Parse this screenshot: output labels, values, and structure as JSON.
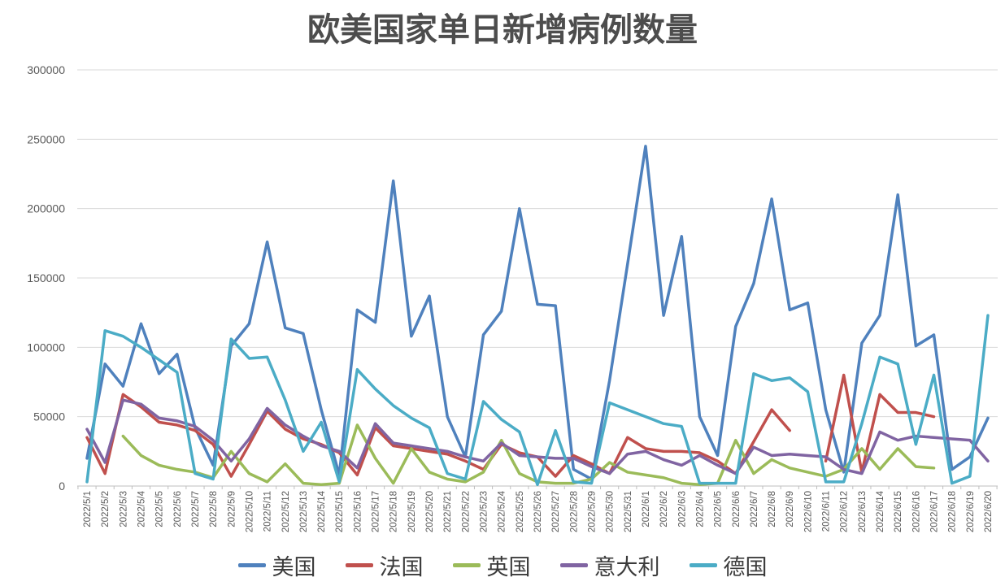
{
  "title": "欧美国家单日新增病例数量",
  "chart_data": {
    "type": "line",
    "title": "欧美国家单日新增病例数量",
    "xlabel": "",
    "ylabel": "",
    "ylim": [
      0,
      300000
    ],
    "yticks": [
      0,
      50000,
      100000,
      150000,
      200000,
      250000,
      300000
    ],
    "grid": true,
    "grid_color": "#d9d9d9",
    "axis_label_color": "#595959",
    "legend_position": "bottom",
    "categories": [
      "2022/5/1",
      "2022/5/2",
      "2022/5/3",
      "2022/5/4",
      "2022/5/5",
      "2022/5/6",
      "2022/5/7",
      "2022/5/8",
      "2022/5/9",
      "2022/5/10",
      "2022/5/11",
      "2022/5/12",
      "2022/5/13",
      "2022/5/14",
      "2022/5/15",
      "2022/5/16",
      "2022/5/17",
      "2022/5/18",
      "2022/5/19",
      "2022/5/20",
      "2022/5/21",
      "2022/5/22",
      "2022/5/23",
      "2022/5/24",
      "2022/5/25",
      "2022/5/26",
      "2022/5/27",
      "2022/5/28",
      "2022/5/29",
      "2022/5/30",
      "2022/5/31",
      "2022/6/1",
      "2022/6/2",
      "2022/6/3",
      "2022/6/4",
      "2022/6/5",
      "2022/6/6",
      "2022/6/7",
      "2022/6/8",
      "2022/6/9",
      "2022/6/10",
      "2022/6/11",
      "2022/6/12",
      "2022/6/13",
      "2022/6/14",
      "2022/6/15",
      "2022/6/16",
      "2022/6/17",
      "2022/6/18",
      "2022/6/19",
      "2022/6/20"
    ],
    "series": [
      {
        "key": "usa",
        "name": "美国",
        "color": "#4F81BD",
        "values": [
          20000,
          88000,
          72000,
          117000,
          81000,
          95000,
          42000,
          15000,
          101000,
          117000,
          176000,
          114000,
          110000,
          55000,
          8000,
          127000,
          118000,
          220000,
          108000,
          137000,
          50000,
          21000,
          109000,
          126000,
          200000,
          131000,
          130000,
          12000,
          5000,
          76000,
          160000,
          245000,
          123000,
          180000,
          50000,
          22000,
          115000,
          146000,
          207000,
          127000,
          132000,
          55000,
          10000,
          103000,
          123000,
          210000,
          101000,
          109000,
          12000,
          21000,
          49000
        ]
      },
      {
        "key": "france",
        "name": "法国",
        "color": "#C0504D",
        "values": [
          35000,
          9000,
          66000,
          57000,
          46000,
          44000,
          40000,
          30000,
          7000,
          30000,
          54000,
          41000,
          34000,
          30000,
          24000,
          8000,
          42000,
          29000,
          27000,
          25000,
          23000,
          18000,
          12000,
          30000,
          24000,
          21000,
          7000,
          22000,
          16000,
          9000,
          35000,
          27000,
          25000,
          25000,
          24000,
          18000,
          9000,
          32000,
          55000,
          40000,
          null,
          18000,
          80000,
          10000,
          66000,
          53000,
          53000,
          50000,
          null,
          null,
          null
        ]
      },
      {
        "key": "uk",
        "name": "英国",
        "color": "#9BBB59",
        "values": [
          null,
          null,
          36000,
          22000,
          15000,
          12000,
          10000,
          6000,
          25000,
          9000,
          3000,
          16000,
          2000,
          1000,
          2000,
          44000,
          20000,
          2000,
          27000,
          10000,
          5000,
          3000,
          10000,
          33000,
          9000,
          3000,
          2000,
          2000,
          5000,
          17000,
          10000,
          8000,
          6000,
          2000,
          1000,
          2000,
          33000,
          9000,
          19000,
          13000,
          10000,
          7000,
          12000,
          27000,
          12000,
          27000,
          14000,
          13000,
          null,
          null,
          null
        ]
      },
      {
        "key": "italy",
        "name": "意大利",
        "color": "#8064A2",
        "values": [
          41000,
          17000,
          62000,
          59000,
          49000,
          47000,
          43000,
          33000,
          18000,
          34000,
          56000,
          44000,
          36000,
          29000,
          25000,
          13000,
          45000,
          31000,
          29000,
          27000,
          25000,
          21000,
          18000,
          31000,
          22000,
          21000,
          20000,
          20000,
          14000,
          9000,
          23000,
          25000,
          19000,
          15000,
          22000,
          15000,
          9000,
          28000,
          22000,
          23000,
          22000,
          21000,
          12000,
          9000,
          39000,
          33000,
          36000,
          35000,
          34000,
          33000,
          18000
        ]
      },
      {
        "key": "germany",
        "name": "德国",
        "color": "#4BACC6",
        "values": [
          3000,
          112000,
          108000,
          100000,
          91000,
          82000,
          9000,
          5000,
          106000,
          92000,
          93000,
          62000,
          25000,
          46000,
          3000,
          84000,
          70000,
          58000,
          49000,
          42000,
          9000,
          5000,
          61000,
          48000,
          39000,
          1000,
          40000,
          3000,
          2000,
          60000,
          55000,
          50000,
          45000,
          43000,
          2000,
          2000,
          2000,
          81000,
          76000,
          78000,
          68000,
          3000,
          3000,
          45000,
          93000,
          88000,
          30000,
          80000,
          2000,
          7000,
          123000
        ]
      }
    ]
  }
}
